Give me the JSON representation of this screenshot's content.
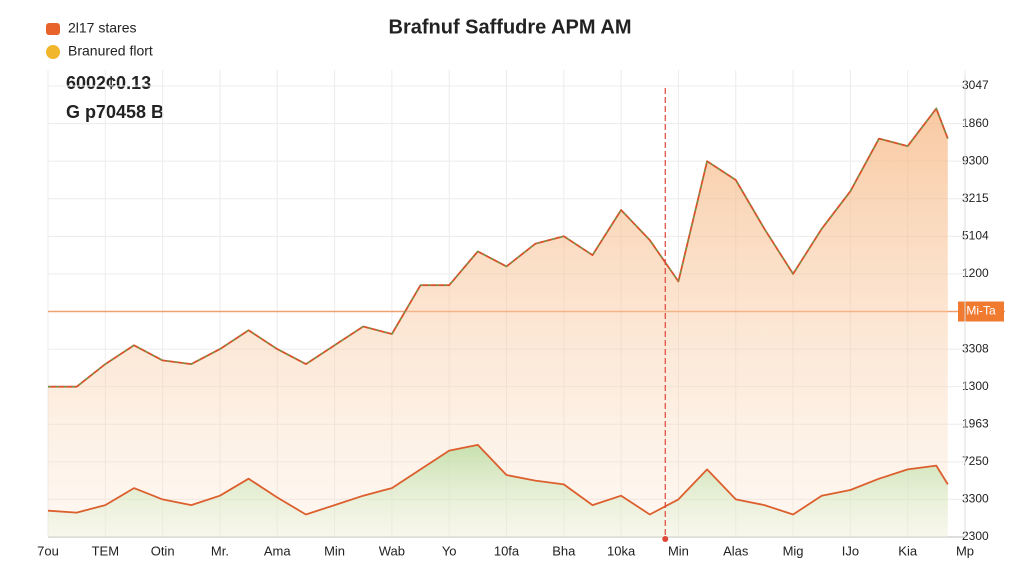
{
  "chart_data": {
    "type": "line",
    "title": "Brafnuf Saffudre APM AM",
    "legend": [
      {
        "label": "2l17 stares",
        "color": "#e8632b",
        "shape": "square"
      },
      {
        "label": "Branured flort",
        "color": "#f2b62c",
        "shape": "circle"
      }
    ],
    "annotations": [
      "6002¢0.13",
      "G p70458 B"
    ],
    "xlim": [
      0,
      16
    ],
    "xticks": [
      {
        "value": 0,
        "label": "7ou"
      },
      {
        "value": 1,
        "label": "TEM"
      },
      {
        "value": 2,
        "label": "Otin"
      },
      {
        "value": 3,
        "label": "Mr."
      },
      {
        "value": 4,
        "label": "Ama"
      },
      {
        "value": 5,
        "label": "Min"
      },
      {
        "value": 6,
        "label": "Wab"
      },
      {
        "value": 7,
        "label": "Yo"
      },
      {
        "value": 8,
        "label": "10fa"
      },
      {
        "value": 9,
        "label": "Bha"
      },
      {
        "value": 10,
        "label": "10ka"
      },
      {
        "value": 11,
        "label": "Min"
      },
      {
        "value": 12,
        "label": "Alas"
      },
      {
        "value": 13,
        "label": "Mig"
      },
      {
        "value": 14,
        "label": "IJo"
      },
      {
        "value": 15,
        "label": "Kia"
      },
      {
        "value": 16,
        "label": "Mp"
      }
    ],
    "ylim": [
      0,
      12
    ],
    "yticks": [
      {
        "value": 12,
        "label": "3047"
      },
      {
        "value": 11,
        "label": "1860"
      },
      {
        "value": 10,
        "label": "9300"
      },
      {
        "value": 9,
        "label": "3215"
      },
      {
        "value": 8,
        "label": "5104"
      },
      {
        "value": 7,
        "label": "1200"
      },
      {
        "value": 6,
        "label": "Mi-Ta"
      },
      {
        "value": 5,
        "label": "3308"
      },
      {
        "value": 4,
        "label": "1300"
      },
      {
        "value": 3,
        "label": "1963"
      },
      {
        "value": 2,
        "label": "7250"
      },
      {
        "value": 1,
        "label": "3300"
      },
      {
        "value": 0,
        "label": "2300"
      }
    ],
    "highlight_ytick": 6,
    "vline": 10.77,
    "grid": true,
    "series": [
      {
        "color": "#d9502a",
        "area": "orange",
        "x": [
          0,
          0.5,
          1,
          1.5,
          2,
          2.5,
          3,
          3.5,
          4,
          4.5,
          5,
          5.5,
          6,
          6.5,
          7,
          7.5,
          8,
          8.5,
          9,
          9.5,
          10,
          10.5,
          11,
          11.5,
          12,
          12.5,
          13,
          13.5,
          14,
          14.5,
          15,
          15.5,
          15.7
        ],
        "values": [
          4.0,
          4.0,
          4.6,
          5.1,
          4.7,
          4.6,
          5.0,
          5.5,
          5.0,
          4.6,
          5.1,
          5.6,
          5.4,
          6.7,
          6.7,
          7.6,
          7.2,
          7.8,
          8.0,
          7.5,
          8.7,
          7.9,
          6.8,
          10.0,
          9.5,
          8.2,
          7.0,
          8.2,
          9.2,
          10.6,
          10.4,
          11.4,
          10.6
        ]
      },
      {
        "color": "#dc5f2e",
        "area": "green",
        "x": [
          0,
          0.5,
          1,
          1.5,
          2,
          2.5,
          3,
          3.5,
          4,
          4.5,
          5,
          5.5,
          6,
          6.5,
          7,
          7.5,
          8,
          8.5,
          9,
          9.5,
          10,
          10.5,
          11,
          11.5,
          12,
          12.5,
          13,
          13.5,
          14,
          14.5,
          15,
          15.5,
          15.7
        ],
        "values": [
          0.7,
          0.65,
          0.85,
          1.3,
          1.0,
          0.85,
          1.1,
          1.55,
          1.05,
          0.6,
          0.85,
          1.1,
          1.3,
          1.8,
          2.3,
          2.45,
          1.65,
          1.5,
          1.4,
          0.85,
          1.1,
          0.6,
          1.0,
          1.8,
          1.0,
          0.85,
          0.6,
          1.1,
          1.25,
          1.55,
          1.8,
          1.9,
          1.4
        ]
      }
    ]
  }
}
